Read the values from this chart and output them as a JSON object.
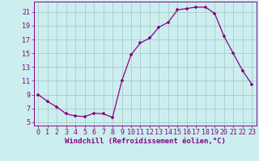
{
  "x": [
    0,
    1,
    2,
    3,
    4,
    5,
    6,
    7,
    8,
    9,
    10,
    11,
    12,
    13,
    14,
    15,
    16,
    17,
    18,
    19,
    20,
    21,
    22,
    23
  ],
  "y": [
    9,
    8,
    7.2,
    6.2,
    5.9,
    5.8,
    6.3,
    6.2,
    5.7,
    11,
    14.8,
    16.5,
    17.2,
    18.8,
    19.5,
    21.3,
    21.5,
    21.7,
    21.7,
    20.8,
    17.5,
    15.0,
    12.5,
    10.5
  ],
  "line_color": "#880088",
  "marker": "+",
  "bg_color": "#cceeee",
  "grid_color": "#aacccc",
  "xlabel": "Windchill (Refroidissement éolien,°C)",
  "xlim": [
    -0.5,
    23.5
  ],
  "ylim": [
    4.5,
    22.5
  ],
  "xticks": [
    0,
    1,
    2,
    3,
    4,
    5,
    6,
    7,
    8,
    9,
    10,
    11,
    12,
    13,
    14,
    15,
    16,
    17,
    18,
    19,
    20,
    21,
    22,
    23
  ],
  "yticks": [
    5,
    7,
    9,
    11,
    13,
    15,
    17,
    19,
    21
  ],
  "tick_color": "#880088",
  "spine_color": "#880088",
  "tick_fontsize": 6,
  "xlabel_fontsize": 6.5
}
